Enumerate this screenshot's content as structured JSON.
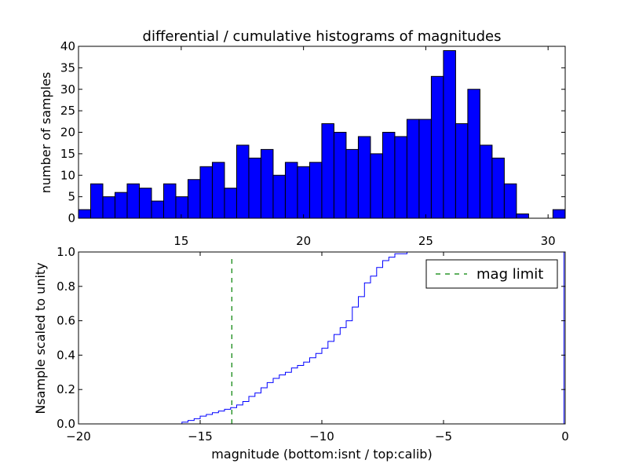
{
  "chart_data": [
    {
      "type": "bar",
      "title": "differential / cumulative histograms of magnitudes",
      "xlabel": "",
      "ylabel": "number of samples",
      "xlim": [
        10.8,
        30.7
      ],
      "ylim": [
        0,
        40
      ],
      "xticks": [
        15,
        20,
        25,
        30
      ],
      "yticks": [
        0,
        5,
        10,
        15,
        20,
        25,
        30,
        35,
        40
      ],
      "color": "#0000ff",
      "bin_start": 10.8,
      "bin_width": 0.4974,
      "values": [
        2,
        8,
        5,
        6,
        8,
        7,
        4,
        8,
        5,
        9,
        12,
        13,
        7,
        17,
        14,
        16,
        10,
        13,
        12,
        13,
        22,
        20,
        16,
        19,
        15,
        20,
        19,
        23,
        23,
        33,
        39,
        22,
        30,
        17,
        14,
        8,
        1,
        0,
        0,
        2
      ]
    },
    {
      "type": "line",
      "title": "",
      "xlabel": "magnitude (bottom:isnt / top:calib)",
      "ylabel": "Nsample scaled to unity",
      "xlim": [
        -20,
        0
      ],
      "ylim": [
        0,
        1
      ],
      "xticks": [
        -20,
        -15,
        -10,
        -5,
        0
      ],
      "ytick_labels": [
        "0.0",
        "0.2",
        "0.4",
        "0.6",
        "0.8",
        "1.0"
      ],
      "xtick_labels": [
        "−20",
        "−15",
        "−10",
        "−5",
        "0"
      ],
      "series": [
        {
          "step": true,
          "color": "#0000ff",
          "x": [
            -20,
            -16.0,
            -15.75,
            -15.5,
            -15.25,
            -15.0,
            -14.75,
            -14.5,
            -14.25,
            -14.0,
            -13.75,
            -13.5,
            -13.25,
            -13.0,
            -12.75,
            -12.5,
            -12.25,
            -12.0,
            -11.75,
            -11.5,
            -11.25,
            -11.0,
            -10.75,
            -10.5,
            -10.25,
            -10.0,
            -9.75,
            -9.5,
            -9.25,
            -9.0,
            -8.75,
            -8.5,
            -8.25,
            -8.0,
            -7.75,
            -7.5,
            -7.25,
            -7.0,
            -6.5,
            -0.05,
            -0.05
          ],
          "y": [
            0.0,
            0.0,
            0.01,
            0.02,
            0.03,
            0.045,
            0.055,
            0.065,
            0.075,
            0.085,
            0.095,
            0.11,
            0.13,
            0.16,
            0.18,
            0.21,
            0.24,
            0.265,
            0.285,
            0.3,
            0.325,
            0.34,
            0.36,
            0.385,
            0.41,
            0.44,
            0.48,
            0.52,
            0.56,
            0.6,
            0.68,
            0.74,
            0.82,
            0.86,
            0.91,
            0.95,
            0.97,
            0.99,
            1.0,
            1.0,
            0.0
          ]
        },
        {
          "name": "mag limit",
          "style": "dashed",
          "color": "#008000",
          "x": [
            -13.7,
            -13.7
          ],
          "y": [
            0,
            0.97
          ]
        }
      ],
      "legend": "top-right"
    }
  ]
}
